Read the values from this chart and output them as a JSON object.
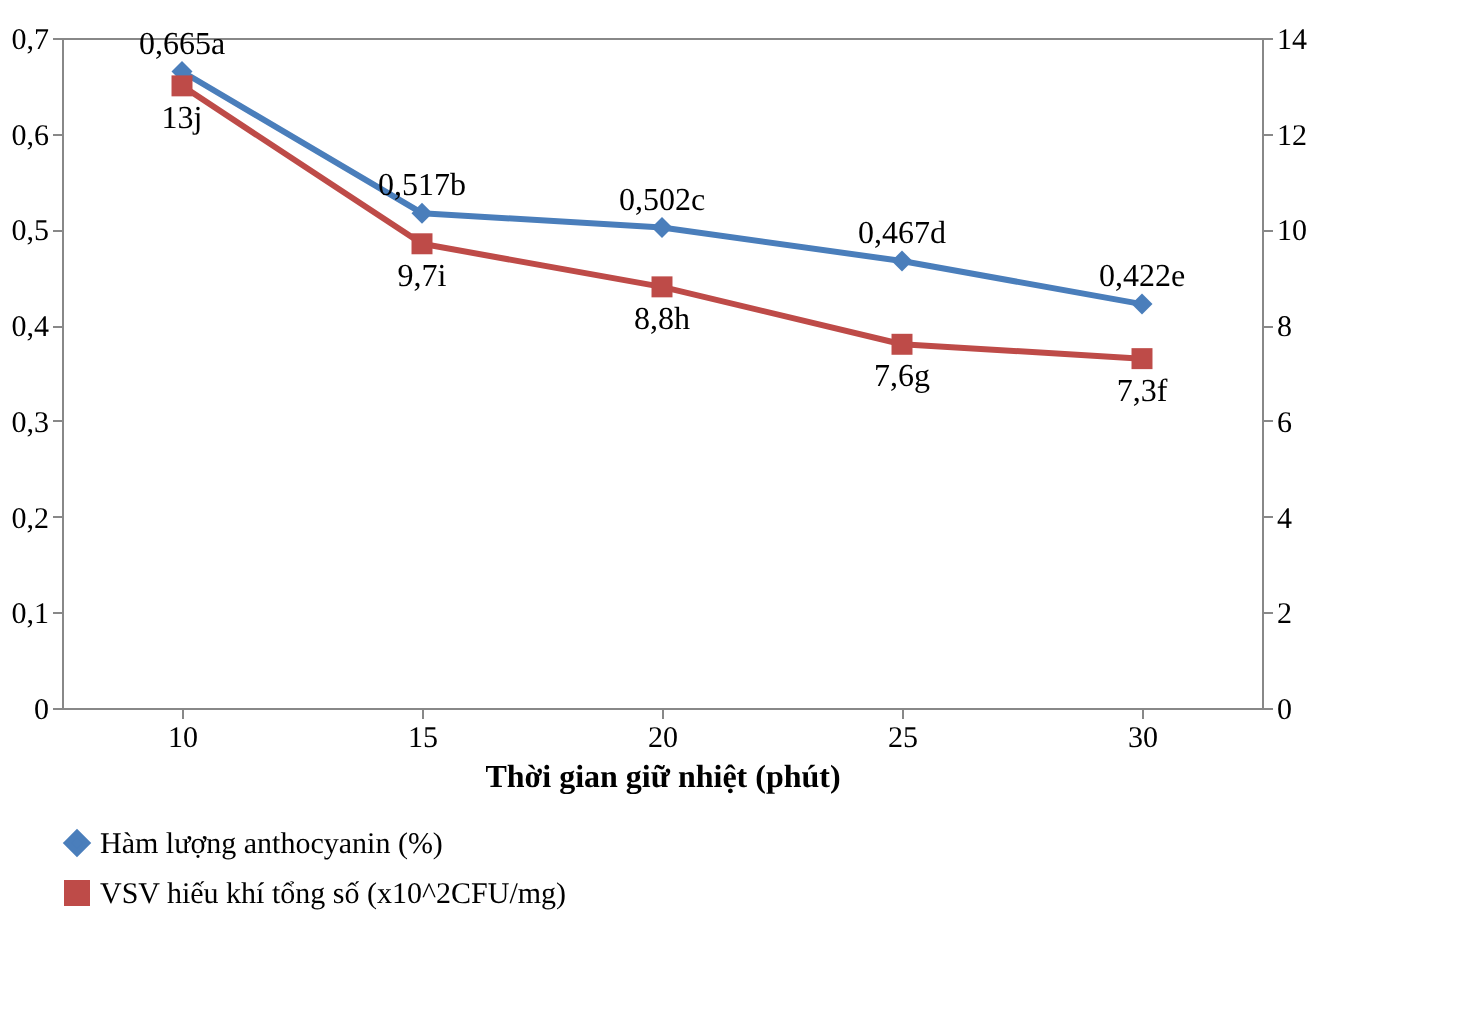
{
  "chart_data": {
    "type": "line",
    "xlabel": "Thời gian giữ nhiệt (phút)",
    "categories": [
      "10",
      "15",
      "20",
      "25",
      "30"
    ],
    "series": [
      {
        "name": "Hàm lượng anthocyanin  (%)",
        "color": "#4a7ebb",
        "marker": "diamond",
        "values": [
          0.665,
          0.517,
          0.502,
          0.467,
          0.422
        ],
        "value_labels": [
          "0,665a",
          "0,517b",
          "0,502c",
          "0,467d",
          "0,422e"
        ]
      },
      {
        "name": "VSV  hiếu khí tổng số (x10^2CFU/mg)",
        "color": "#be4b48",
        "marker": "square",
        "axis": "y2",
        "values": [
          13,
          9.7,
          8.8,
          7.6,
          7.3
        ],
        "value_labels": [
          "13j",
          "9,7i",
          "8,8h",
          "7,6g",
          "7,3f"
        ]
      }
    ],
    "ylim": [
      0,
      0.7
    ],
    "yticks": [
      0,
      {
        "value": 0.1,
        "label": "0,1"
      },
      {
        "value": 0.2,
        "label": "0,2"
      },
      {
        "value": 0.3,
        "label": "0,3"
      },
      {
        "value": 0.4,
        "label": "0,4"
      },
      {
        "value": 0.5,
        "label": "0,5"
      },
      {
        "value": 0.6,
        "label": "0,6"
      },
      {
        "value": 0.7,
        "label": "0,7"
      }
    ],
    "y2lim": [
      0,
      14
    ],
    "y2ticks": [
      0,
      2,
      4,
      6,
      8,
      10,
      12,
      14
    ],
    "grid": false,
    "legend": "bottom",
    "line_style": "solid"
  }
}
